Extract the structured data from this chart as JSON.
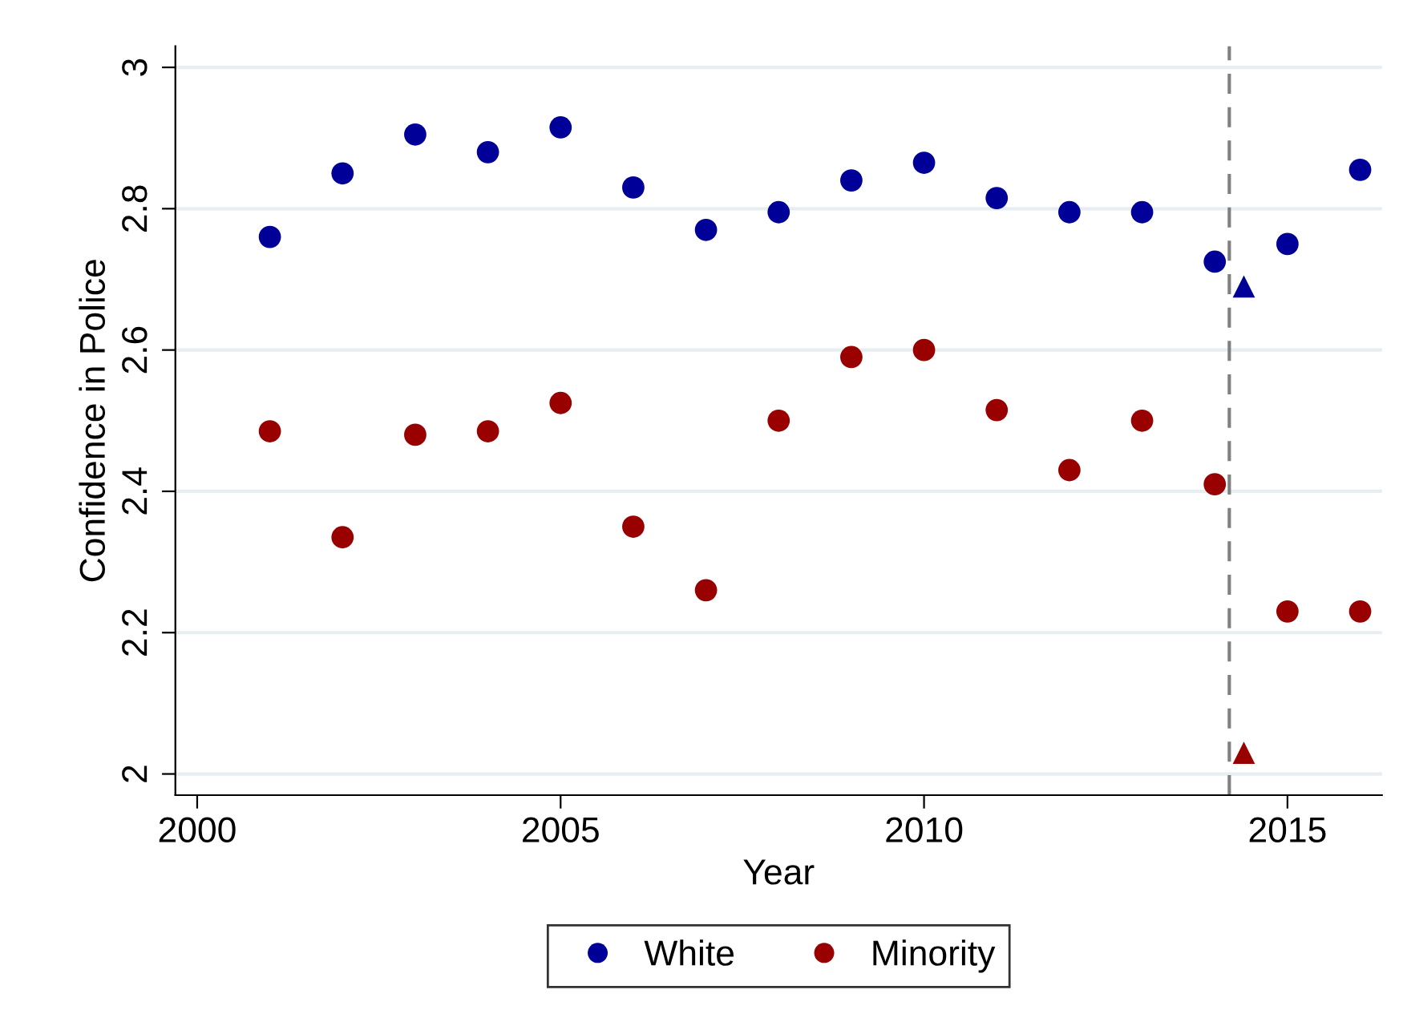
{
  "chart_data": {
    "type": "scatter",
    "xlabel": "Year",
    "ylabel": "Confidence in Police",
    "x": [
      2001,
      2002,
      2003,
      2004,
      2005,
      2006,
      2007,
      2008,
      2009,
      2010,
      2011,
      2012,
      2013,
      2014,
      2015,
      2016
    ],
    "series": [
      {
        "name": "White",
        "color": "#000099",
        "values": [
          2.76,
          2.85,
          2.905,
          2.88,
          2.915,
          2.83,
          2.77,
          2.795,
          2.84,
          2.865,
          2.815,
          2.795,
          2.795,
          2.725,
          2.75,
          2.855
        ]
      },
      {
        "name": "Minority",
        "color": "#990000",
        "values": [
          2.485,
          2.335,
          2.48,
          2.485,
          2.525,
          2.35,
          2.26,
          2.5,
          2.59,
          2.6,
          2.515,
          2.43,
          2.5,
          2.41,
          2.23,
          2.23
        ]
      },
      {
        "color": "#000099",
        "marker": "triangle",
        "x": [
          2014.4
        ],
        "values": [
          2.69
        ]
      },
      {
        "color": "#990000",
        "marker": "triangle",
        "x": [
          2014.4
        ],
        "values": [
          2.03
        ]
      }
    ],
    "marker": "circle",
    "xlim": [
      1999.7,
      2016.3
    ],
    "xticks": [
      2000,
      2005,
      2010,
      2015
    ],
    "ylim": [
      1.97,
      3.03
    ],
    "yticks": [
      2,
      2.2,
      2.4,
      2.6,
      2.8,
      3
    ],
    "ref_lines": [
      {
        "axis": "x",
        "value": 2014.2,
        "color": "#808080",
        "line_style": "dashed"
      }
    ],
    "grid": "y",
    "legend": "bottom"
  }
}
